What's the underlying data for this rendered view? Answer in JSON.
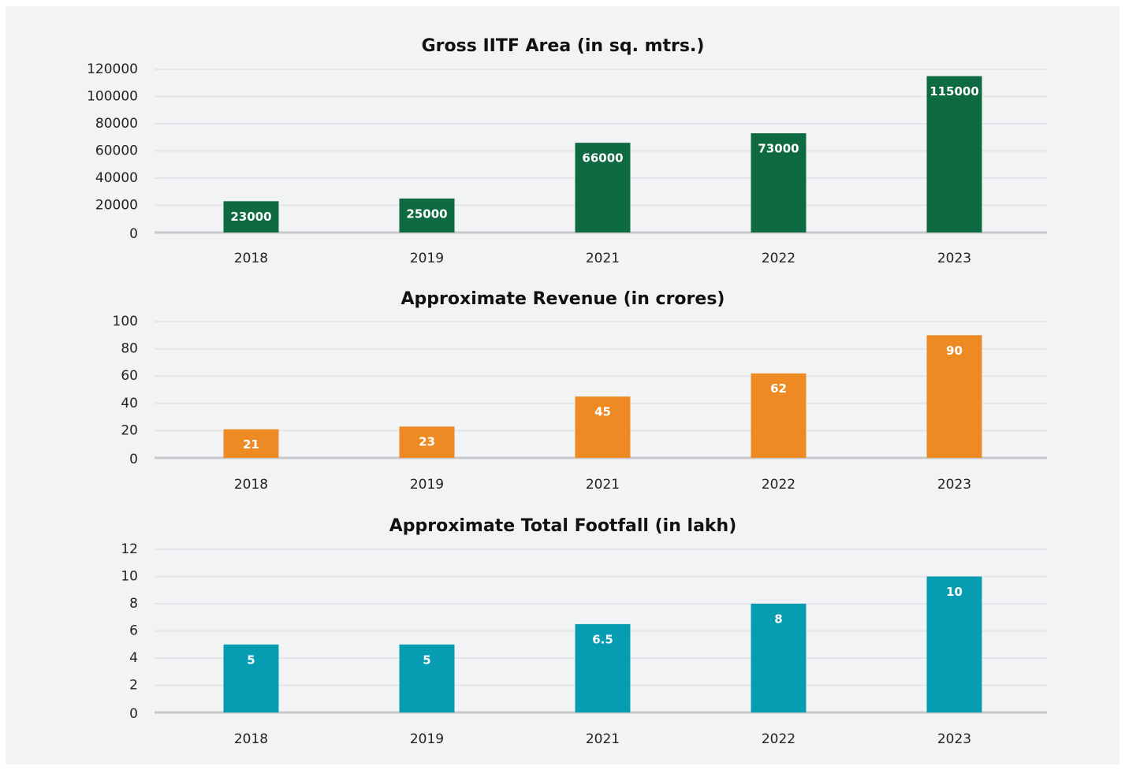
{
  "chart_data": [
    {
      "type": "bar",
      "title": "Gross IITF Area (in sq. mtrs.)",
      "categories": [
        "2018",
        "2019",
        "2021",
        "2022",
        "2023"
      ],
      "values": [
        23000,
        25000,
        66000,
        73000,
        115000
      ],
      "color": "#0e6a40",
      "ylim": [
        0,
        120000
      ],
      "yticks": [
        0,
        20000,
        40000,
        60000,
        80000,
        100000,
        120000
      ],
      "grid": true
    },
    {
      "type": "bar",
      "title": "Approximate Revenue (in crores)",
      "categories": [
        "2018",
        "2019",
        "2021",
        "2022",
        "2023"
      ],
      "values": [
        21,
        23,
        45,
        62,
        90
      ],
      "color": "#ee8a24",
      "ylim": [
        0,
        100
      ],
      "yticks": [
        0,
        20,
        40,
        60,
        80,
        100
      ],
      "grid": true
    },
    {
      "type": "bar",
      "title": "Approximate Total Footfall (in lakh)",
      "categories": [
        "2018",
        "2019",
        "2021",
        "2022",
        "2023"
      ],
      "values": [
        5,
        5,
        6.5,
        8,
        10
      ],
      "color": "#069db3",
      "ylim": [
        0,
        12
      ],
      "yticks": [
        0,
        2,
        4,
        6,
        8,
        10,
        12
      ],
      "grid": true
    }
  ]
}
